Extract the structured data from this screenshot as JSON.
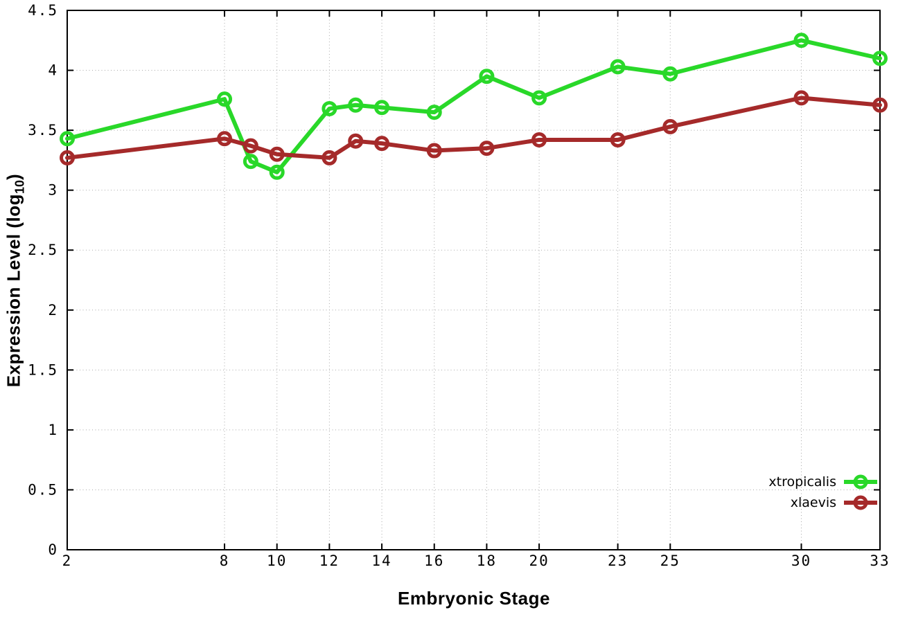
{
  "chart_data": {
    "type": "line",
    "title": "",
    "xlabel": "Embryonic Stage",
    "ylabel": "Expression Level (log10)",
    "ylabel_parts": {
      "prefix": "Expression Level (log",
      "sub": "10",
      "suffix": ")"
    },
    "x": [
      2,
      8,
      9,
      10,
      12,
      13,
      14,
      16,
      18,
      20,
      23,
      25,
      30,
      33
    ],
    "series": [
      {
        "name": "xtropicalis",
        "color": "#29d829",
        "values": [
          3.43,
          3.76,
          3.24,
          3.15,
          3.68,
          3.71,
          3.69,
          3.65,
          3.95,
          3.77,
          4.03,
          3.97,
          4.25,
          4.1
        ]
      },
      {
        "name": "xlaevis",
        "color": "#a52a2a",
        "values": [
          3.27,
          3.43,
          3.37,
          3.3,
          3.27,
          3.41,
          3.39,
          3.33,
          3.35,
          3.42,
          3.42,
          3.53,
          3.77,
          3.71
        ]
      }
    ],
    "xticks": [
      2,
      8,
      10,
      12,
      14,
      16,
      18,
      20,
      23,
      25,
      30,
      33
    ],
    "yticks": [
      0,
      0.5,
      1,
      1.5,
      2,
      2.5,
      3,
      3.5,
      4,
      4.5
    ],
    "xlim": [
      2,
      33
    ],
    "ylim": [
      0,
      4.5
    ],
    "grid": true,
    "legend_position": "bottom-right",
    "marker": "open-circle",
    "axis_color": "#000000",
    "grid_color": "#a8a8a8",
    "background": "#ffffff"
  }
}
